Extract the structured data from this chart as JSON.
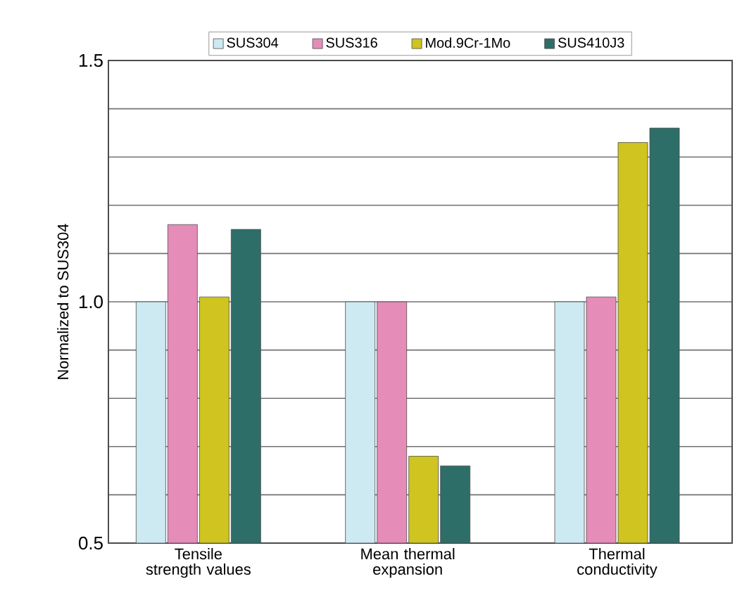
{
  "chart_data": {
    "type": "bar",
    "ylabel": "Normalized to SUS304",
    "categories": [
      "Tensile strength values",
      "Mean thermal expansion",
      "Thermal conductivity"
    ],
    "series": [
      {
        "name": "SUS304",
        "color": "#cde9f2",
        "values": [
          1.0,
          1.0,
          1.0
        ]
      },
      {
        "name": "SUS316",
        "color": "#e58cb9",
        "values": [
          1.16,
          1.0,
          1.01
        ]
      },
      {
        "name": "Mod.9Cr-1Mo",
        "color": "#cfc420",
        "values": [
          1.01,
          0.68,
          1.33
        ]
      },
      {
        "name": "SUS410J3",
        "color": "#2e6e68",
        "values": [
          1.15,
          0.66,
          1.36
        ]
      }
    ],
    "ylim": [
      0.5,
      1.5
    ],
    "yticks": [
      {
        "value": 0.5,
        "label": "0.5"
      },
      {
        "value": 0.6,
        "label": null
      },
      {
        "value": 0.7,
        "label": null
      },
      {
        "value": 0.8,
        "label": null
      },
      {
        "value": 0.9,
        "label": null
      },
      {
        "value": 1.0,
        "label": "1.0"
      },
      {
        "value": 1.1,
        "label": null
      },
      {
        "value": 1.2,
        "label": null
      },
      {
        "value": 1.3,
        "label": null
      },
      {
        "value": 1.4,
        "label": null
      },
      1.5
    ],
    "grid": "y",
    "legend": "top"
  }
}
